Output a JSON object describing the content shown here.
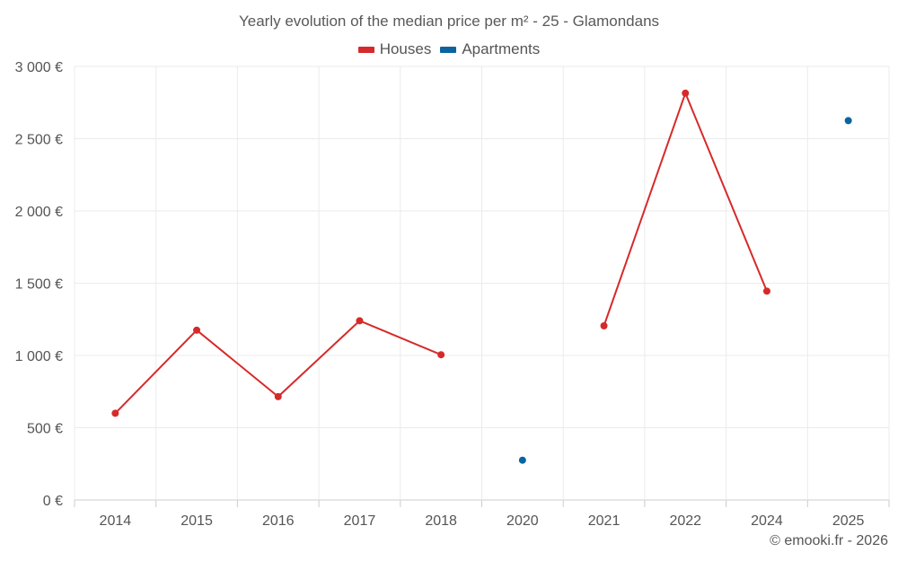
{
  "chart_data": {
    "type": "line",
    "title": "Yearly evolution of the median price per m² - 25 - Glamondans",
    "categories": [
      "2014",
      "2015",
      "2016",
      "2017",
      "2018",
      "2020",
      "2021",
      "2022",
      "2024",
      "2025"
    ],
    "series": [
      {
        "name": "Houses",
        "color": "#d62a2a",
        "values": [
          600,
          1175,
          715,
          1240,
          1005,
          null,
          1205,
          2815,
          1445,
          null
        ]
      },
      {
        "name": "Apartments",
        "color": "#0b64a0",
        "values": [
          null,
          null,
          null,
          null,
          null,
          275,
          null,
          null,
          null,
          2625
        ]
      }
    ],
    "ylim": [
      0,
      3000
    ],
    "yticks": [
      0,
      500,
      1000,
      1500,
      2000,
      2500,
      3000
    ],
    "ytick_labels": [
      "0 €",
      "500 €",
      "1 000 €",
      "1 500 €",
      "2 000 €",
      "2 500 €",
      "3 000 €"
    ],
    "xlabel": "",
    "ylabel": "",
    "legend_position": "top-center",
    "grid": true
  },
  "credit": "© emooki.fr - 2026"
}
